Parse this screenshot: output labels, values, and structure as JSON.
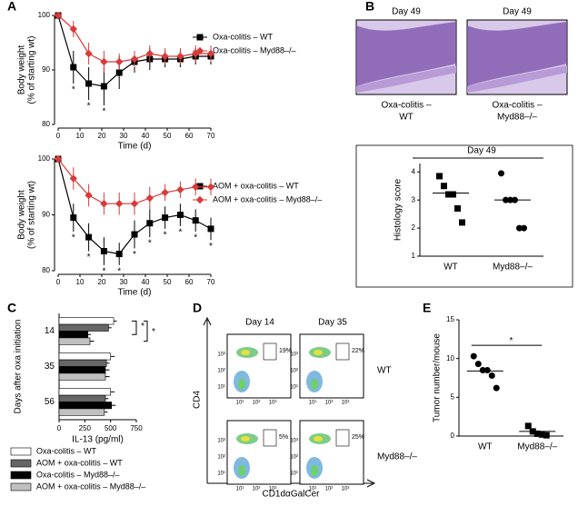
{
  "figure": {
    "histology": {
      "panel": "B",
      "images": [
        {
          "title": "Day 49",
          "caption": [
            "Oxa-colitis –",
            "WT"
          ]
        },
        {
          "title": "Day 49",
          "caption": [
            "Oxa-colitis –",
            "Myd88–/–"
          ]
        }
      ]
    },
    "flow": {
      "panel": "D",
      "columns": [
        "Day 14",
        "Day 35"
      ],
      "rows": [
        "WT",
        "Myd88–/–"
      ],
      "percentages": [
        [
          "19%",
          "22%"
        ],
        [
          "5%",
          "25%"
        ]
      ],
      "ylabel": "CD4",
      "xlabel": "CD1dαGalCer",
      "ticks": [
        "10¹",
        "10²",
        "10³"
      ]
    }
  },
  "chart_data": [
    {
      "type": "line",
      "panel": "A",
      "xlabel": "Time (d)",
      "ylabel": [
        "Body weight",
        "(% of starting wt)"
      ],
      "x": [
        0,
        7,
        14,
        21,
        28,
        35,
        42,
        49,
        56,
        63,
        70
      ],
      "xlim": [
        0,
        70
      ],
      "xticks": [
        0,
        10,
        20,
        30,
        40,
        50,
        60,
        70
      ],
      "ylim": [
        80,
        100
      ],
      "yticks": [
        80,
        90,
        100
      ],
      "legend": "right",
      "series": [
        {
          "name": "Oxa-colitis – WT",
          "color": "#000000",
          "marker": "square",
          "values": [
            100,
            90.5,
            87.5,
            87,
            89.5,
            91.5,
            92,
            92,
            92,
            92.5,
            92.5
          ],
          "errors": [
            0,
            3,
            3,
            3.5,
            3,
            2,
            2,
            1.5,
            1.5,
            1.5,
            1.5
          ],
          "stars": [
            null,
            "*",
            "*",
            "*",
            null,
            null,
            null,
            null,
            null,
            null,
            null
          ]
        },
        {
          "name": "Oxa-colitis – Myd88–/–",
          "color": "#d93a3a",
          "marker": "diamond",
          "values": [
            100,
            97.5,
            93,
            91.5,
            91.5,
            92,
            93,
            92.5,
            92.5,
            93,
            93
          ],
          "errors": [
            0,
            1.5,
            2,
            2,
            1.5,
            1.5,
            1.5,
            1.5,
            1.5,
            1.5,
            1.5
          ]
        }
      ]
    },
    {
      "type": "line",
      "xlabel": "Time (d)",
      "ylabel": [
        "Body weight",
        "(% of starting wt)"
      ],
      "x": [
        0,
        7,
        14,
        21,
        28,
        35,
        42,
        49,
        56,
        63,
        70
      ],
      "xlim": [
        0,
        70
      ],
      "xticks": [
        0,
        10,
        20,
        30,
        40,
        50,
        60,
        70
      ],
      "ylim": [
        80,
        100
      ],
      "yticks": [
        80,
        90,
        100
      ],
      "legend": "right",
      "series": [
        {
          "name": "AOM + oxa-colitis – WT",
          "color": "#000000",
          "marker": "square",
          "values": [
            100,
            89.5,
            86,
            83.5,
            83,
            86.5,
            88.5,
            89.5,
            90,
            89,
            87.5
          ],
          "errors": [
            0,
            2.5,
            2.5,
            2.5,
            2,
            2.5,
            2.5,
            2,
            2,
            2,
            2
          ],
          "stars": [
            null,
            "*",
            "*",
            "*",
            "*",
            "*",
            "*",
            "*",
            "*",
            "*",
            "*"
          ]
        },
        {
          "name": "AOM + oxa-colitis – Myd88–/–",
          "color": "#d93a3a",
          "marker": "diamond",
          "values": [
            100,
            96.5,
            93.5,
            92,
            92,
            92,
            93,
            94,
            94.5,
            95,
            95
          ],
          "errors": [
            0,
            2,
            2,
            2,
            2,
            2,
            2,
            1.5,
            1.5,
            1.5,
            1.5
          ]
        }
      ]
    },
    {
      "type": "dotplot",
      "title": "Day 49",
      "ylabel": "Histology score",
      "categories": [
        "WT",
        "Myd88–/–"
      ],
      "markers": [
        "square",
        "circle"
      ],
      "values": [
        [
          3.85,
          3.5,
          3.2,
          3.2,
          2.7,
          2.2
        ],
        [
          3.95,
          3.0,
          3.0,
          3.0,
          2.0,
          2.0
        ]
      ],
      "means": [
        3.25,
        3.0
      ],
      "ylim": [
        1,
        4.3
      ],
      "yticks": [
        1,
        2,
        3,
        4
      ]
    },
    {
      "type": "hbar",
      "panel": "C",
      "xlabel": "IL-13 (pg/ml)",
      "ylabel": "Days after oxa initiation",
      "categories": [
        "14",
        "35",
        "56"
      ],
      "xlim": [
        0,
        750
      ],
      "xticks": [
        0,
        250,
        500,
        750
      ],
      "annotations": [
        "*",
        "*"
      ],
      "series": [
        {
          "name": "Oxa-colitis – WT",
          "color": "#ffffff",
          "values": [
            530,
            500,
            500
          ],
          "errors": [
            30,
            40,
            40
          ]
        },
        {
          "name": "AOM + oxa-colitis – WT",
          "color": "#666666",
          "values": [
            480,
            460,
            450
          ],
          "errors": [
            30,
            30,
            30
          ]
        },
        {
          "name": "Oxa-colitis – Myd88–/–",
          "color": "#000000",
          "values": [
            280,
            450,
            510
          ],
          "errors": [
            30,
            40,
            40
          ]
        },
        {
          "name": "AOM + oxa-colitis – Myd88–/–",
          "color": "#c0c0c0",
          "values": [
            300,
            450,
            440
          ],
          "errors": [
            40,
            40,
            30
          ]
        }
      ]
    },
    {
      "type": "dotplot",
      "panel": "E",
      "ylabel": "Tumor number/mouse",
      "annotation": "*",
      "categories": [
        "WT",
        "Myd88–/–"
      ],
      "markers": [
        "circle",
        "square"
      ],
      "values": [
        [
          10.3,
          9.3,
          8.5,
          8.5,
          7.8,
          6.2
        ],
        [
          1.3,
          0.6,
          0.3,
          0.2,
          0.1
        ]
      ],
      "means": [
        8.4,
        0.6
      ],
      "ylim": [
        0,
        15
      ],
      "yticks": [
        0,
        5,
        10,
        15
      ]
    }
  ]
}
